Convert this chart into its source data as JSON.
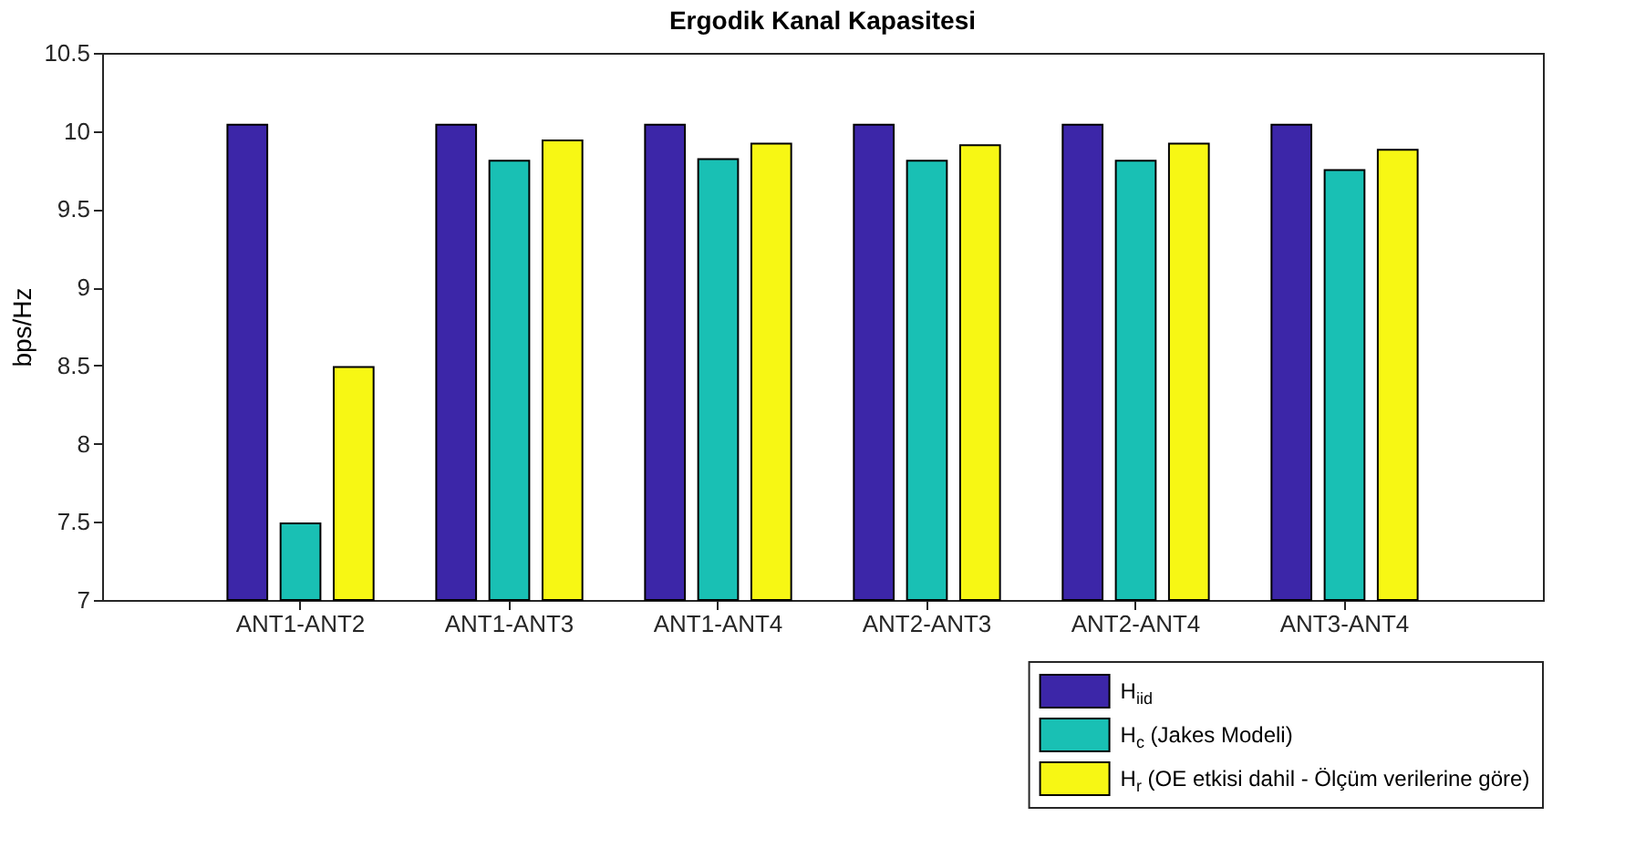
{
  "chart_data": {
    "type": "bar",
    "title": "Ergodik Kanal Kapasitesi",
    "ylabel": "bps/Hz",
    "categories": [
      "ANT1-ANT2",
      "ANT1-ANT3",
      "ANT1-ANT4",
      "ANT2-ANT3",
      "ANT2-ANT4",
      "ANT3-ANT4"
    ],
    "series": [
      {
        "name": "H$_{iid}$",
        "color": "#3c26a8",
        "values": [
          10.04,
          10.04,
          10.04,
          10.04,
          10.04,
          10.04
        ]
      },
      {
        "name": "H$_{c}$ (Jakes Modeli)",
        "color": "#19c0b4",
        "values": [
          7.49,
          9.81,
          9.82,
          9.81,
          9.81,
          9.75
        ]
      },
      {
        "name": "H$_{r}$ (OE etkisi dahil - Ölçüm verilerine göre)",
        "color": "#f7f714",
        "values": [
          8.49,
          9.94,
          9.92,
          9.91,
          9.92,
          9.88
        ]
      }
    ],
    "ylim": [
      7,
      10.5
    ],
    "yticks": [
      7,
      7.5,
      8,
      8.5,
      9,
      9.5,
      10,
      10.5
    ],
    "grid": false,
    "legend": "bottom right"
  }
}
